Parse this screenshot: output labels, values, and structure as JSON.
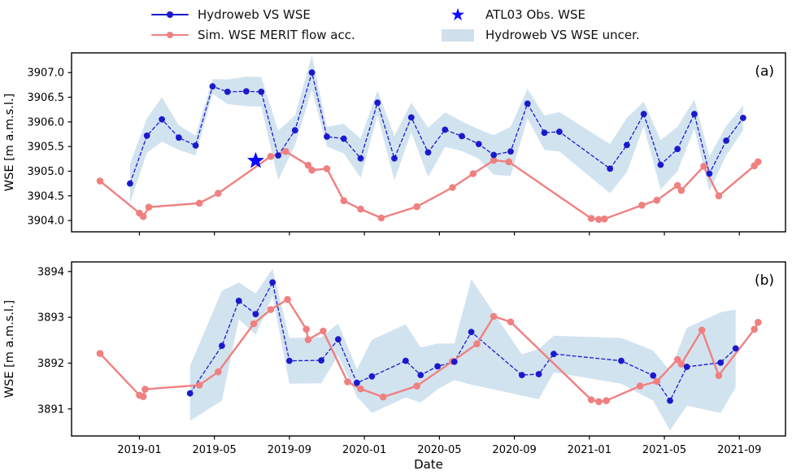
{
  "figure": {
    "colors": {
      "hydroweb_blue": "#1a1acd",
      "sim_pink": "#f08080",
      "star_blue": "#0a0aff",
      "uncert_band": "#a5c7e2",
      "band_opacity": 0.5,
      "axis": "#000000",
      "legend_patch": "#cfe0ec"
    }
  },
  "legend": {
    "items": [
      {
        "label": "Hydroweb VS WSE",
        "type": "line-dot",
        "color_key": "hydroweb_blue"
      },
      {
        "label": "Sim. WSE MERIT flow acc.",
        "type": "line-dot",
        "color_key": "sim_pink"
      },
      {
        "label": "ATL03 Obs. WSE",
        "type": "star",
        "color_key": "star_blue"
      },
      {
        "label": "Hydroweb VS WSE uncer.",
        "type": "patch",
        "color_key": "legend_patch"
      }
    ]
  },
  "x_axis": {
    "label": "Date",
    "tick_positions_months": [
      0,
      4,
      8,
      12,
      16,
      20,
      24,
      28,
      32
    ],
    "tick_labels": [
      "2019-01",
      "2019-05",
      "2019-09",
      "2020-01",
      "2020-05",
      "2020-09",
      "2021-01",
      "2021-05",
      "2021-09"
    ]
  },
  "chart_data": [
    {
      "id": "a",
      "type": "line",
      "annotation": "(a)",
      "ylabel": "WSE [m a.m.s.l.]",
      "x_unit": "months since 2019-01 (decimal, read from date axis)",
      "xlim": [
        -3.62,
        34.46
      ],
      "ylim": [
        3903.77,
        3907.4
      ],
      "ytick_values": [
        3904.0,
        3904.5,
        3905.0,
        3905.5,
        3906.0,
        3906.5,
        3907.0
      ],
      "ytick_labels": [
        "3904.0",
        "3904.5",
        "3905.0",
        "3905.5",
        "3906.0",
        "3906.5",
        "3907.0"
      ],
      "grid": false,
      "series": [
        {
          "name": "Hydroweb VS WSE",
          "color_key": "hydroweb_blue",
          "style": "dashed-dot",
          "points": [
            [
              -0.5,
              3904.75
            ],
            [
              0.4,
              3905.72
            ],
            [
              1.2,
              3906.05
            ],
            [
              2.1,
              3905.68
            ],
            [
              3.0,
              3905.52
            ],
            [
              3.9,
              3906.72
            ],
            [
              4.7,
              3906.61
            ],
            [
              5.7,
              3906.62
            ],
            [
              6.5,
              3906.61
            ],
            [
              7.4,
              3905.32
            ],
            [
              8.3,
              3905.83
            ],
            [
              9.2,
              3907.0
            ],
            [
              10.0,
              3905.7
            ],
            [
              10.9,
              3905.66
            ],
            [
              11.8,
              3905.26
            ],
            [
              12.7,
              3906.39
            ],
            [
              13.6,
              3905.26
            ],
            [
              14.5,
              3906.09
            ],
            [
              15.4,
              3905.38
            ],
            [
              16.3,
              3905.84
            ],
            [
              17.2,
              3905.71
            ],
            [
              18.1,
              3905.55
            ],
            [
              18.9,
              3905.33
            ],
            [
              19.8,
              3905.4
            ],
            [
              20.7,
              3906.37
            ],
            [
              21.6,
              3905.78
            ],
            [
              22.4,
              3905.8
            ],
            [
              25.1,
              3905.05
            ],
            [
              26.0,
              3905.53
            ],
            [
              26.9,
              3906.16
            ],
            [
              27.8,
              3905.13
            ],
            [
              28.7,
              3905.45
            ],
            [
              29.6,
              3906.16
            ],
            [
              30.4,
              3904.95
            ],
            [
              31.3,
              3905.62
            ],
            [
              32.2,
              3906.08
            ]
          ],
          "uncertainty_halfwidth": [
            0.4,
            0.35,
            0.45,
            0.25,
            0.2,
            0.15,
            0.25,
            0.3,
            0.3,
            0.5,
            0.3,
            0.35,
            0.2,
            0.3,
            0.4,
            0.25,
            0.45,
            0.3,
            0.5,
            0.35,
            0.3,
            0.3,
            0.4,
            0.5,
            0.3,
            0.35,
            0.4,
            0.5,
            0.55,
            0.25,
            0.5,
            0.45,
            0.3,
            0.35,
            0.3,
            0.25
          ]
        },
        {
          "name": "Sim. WSE MERIT flow acc.",
          "color_key": "sim_pink",
          "style": "solid-dot",
          "points": [
            [
              -2.1,
              3904.8
            ],
            [
              0.0,
              3904.15
            ],
            [
              0.2,
              3904.08
            ],
            [
              0.5,
              3904.27
            ],
            [
              3.2,
              3904.35
            ],
            [
              4.2,
              3904.55
            ],
            [
              7.0,
              3905.3
            ],
            [
              7.8,
              3905.4
            ],
            [
              9.0,
              3905.12
            ],
            [
              9.2,
              3905.02
            ],
            [
              10.0,
              3905.05
            ],
            [
              10.9,
              3904.4
            ],
            [
              11.8,
              3904.23
            ],
            [
              12.9,
              3904.05
            ],
            [
              14.8,
              3904.28
            ],
            [
              16.7,
              3904.67
            ],
            [
              17.8,
              3904.95
            ],
            [
              18.9,
              3905.22
            ],
            [
              19.7,
              3905.19
            ],
            [
              24.1,
              3904.04
            ],
            [
              24.5,
              3904.02
            ],
            [
              24.8,
              3904.03
            ],
            [
              26.8,
              3904.31
            ],
            [
              27.6,
              3904.41
            ],
            [
              28.7,
              3904.71
            ],
            [
              28.9,
              3904.61
            ],
            [
              30.1,
              3905.1
            ],
            [
              30.9,
              3904.5
            ],
            [
              32.8,
              3905.11
            ],
            [
              33.0,
              3905.19
            ]
          ]
        },
        {
          "name": "ATL03 Obs. WSE",
          "color_key": "star_blue",
          "style": "star",
          "point": [
            6.2,
            3905.21
          ]
        }
      ]
    },
    {
      "id": "b",
      "type": "line",
      "annotation": "(b)",
      "ylabel": "WSE [m a.m.s.l.]",
      "x_unit": "months since 2019-01 (decimal, read from date axis)",
      "xlim": [
        -3.62,
        34.46
      ],
      "ylim": [
        3890.41,
        3894.21
      ],
      "ytick_values": [
        3891,
        3892,
        3893,
        3894
      ],
      "ytick_labels": [
        "3891",
        "3892",
        "3893",
        "3894"
      ],
      "grid": false,
      "series": [
        {
          "name": "Hydroweb VS WSE",
          "color_key": "hydroweb_blue",
          "style": "dashed-dot",
          "points": [
            [
              2.7,
              3891.34
            ],
            [
              4.4,
              3892.38
            ],
            [
              5.3,
              3893.36
            ],
            [
              6.2,
              3893.07
            ],
            [
              7.1,
              3893.76
            ],
            [
              8.0,
              3892.05
            ],
            [
              9.7,
              3892.06
            ],
            [
              10.6,
              3892.52
            ],
            [
              11.6,
              3891.57
            ],
            [
              12.4,
              3891.71
            ],
            [
              14.2,
              3892.05
            ],
            [
              15.0,
              3891.74
            ],
            [
              15.9,
              3891.93
            ],
            [
              16.8,
              3892.03
            ],
            [
              17.7,
              3892.68
            ],
            [
              20.4,
              3891.74
            ],
            [
              21.3,
              3891.76
            ],
            [
              22.1,
              3892.2
            ],
            [
              25.7,
              3892.05
            ],
            [
              27.4,
              3891.73
            ],
            [
              28.3,
              3891.18
            ],
            [
              29.2,
              3891.92
            ],
            [
              31.0,
              3892.01
            ],
            [
              31.8,
              3892.32
            ]
          ],
          "uncertainty_halfwidth": [
            0.6,
            1.2,
            0.4,
            0.45,
            0.3,
            0.5,
            0.5,
            0.35,
            0.3,
            0.8,
            0.8,
            0.6,
            0.5,
            0.4,
            1.15,
            0.45,
            0.55,
            0.4,
            0.5,
            0.55,
            0.65,
            0.85,
            1.1,
            0.85
          ]
        },
        {
          "name": "Sim. WSE MERIT flow acc.",
          "color_key": "sim_pink",
          "style": "solid-dot",
          "points": [
            [
              -2.1,
              3892.21
            ],
            [
              0.0,
              3891.3
            ],
            [
              0.2,
              3891.27
            ],
            [
              0.3,
              3891.43
            ],
            [
              3.2,
              3891.52
            ],
            [
              4.2,
              3891.81
            ],
            [
              6.1,
              3892.86
            ],
            [
              7.0,
              3893.17
            ],
            [
              7.9,
              3893.39
            ],
            [
              8.9,
              3892.74
            ],
            [
              9.0,
              3892.51
            ],
            [
              9.8,
              3892.7
            ],
            [
              11.1,
              3891.59
            ],
            [
              11.8,
              3891.44
            ],
            [
              13.0,
              3891.26
            ],
            [
              14.8,
              3891.5
            ],
            [
              16.7,
              3892.04
            ],
            [
              18.0,
              3892.42
            ],
            [
              18.9,
              3893.02
            ],
            [
              19.8,
              3892.9
            ],
            [
              24.1,
              3891.2
            ],
            [
              24.5,
              3891.16
            ],
            [
              24.9,
              3891.18
            ],
            [
              26.7,
              3891.5
            ],
            [
              27.6,
              3891.6
            ],
            [
              28.7,
              3892.08
            ],
            [
              28.9,
              3891.98
            ],
            [
              30.0,
              3892.72
            ],
            [
              30.9,
              3891.73
            ],
            [
              32.8,
              3892.74
            ],
            [
              33.0,
              3892.89
            ]
          ]
        }
      ]
    }
  ]
}
